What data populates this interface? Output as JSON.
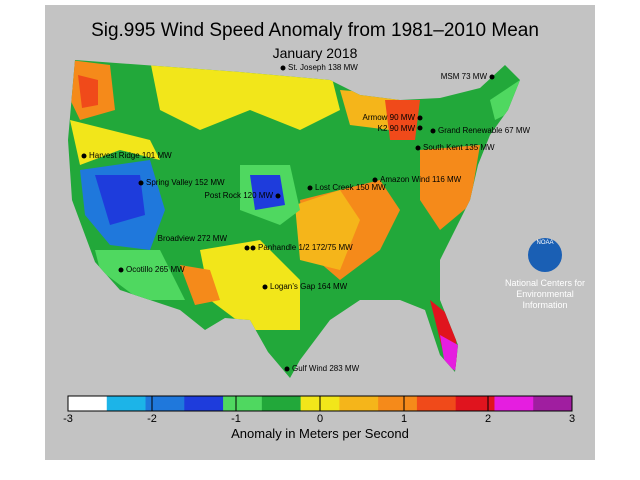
{
  "header": {
    "title": "Sig.995 Wind Speed Anomaly from 1981–2010 Mean",
    "subtitle": "January 2018"
  },
  "sites": [
    {
      "label": "St. Joseph 138 MW"
    },
    {
      "label": "MSM 73 MW"
    },
    {
      "label": "Armow 90 MW"
    },
    {
      "label": "K2 90 MW"
    },
    {
      "label": "Grand Renewable 67 MW"
    },
    {
      "label": "South Kent 135 MW"
    },
    {
      "label": "Harvest Ridge 101 MW"
    },
    {
      "label": "Spring Valley 152 MW"
    },
    {
      "label": "Amazon Wind 116 MW"
    },
    {
      "label": "Lost Creek 150 MW"
    },
    {
      "label": "Post Rock 120 MW"
    },
    {
      "label": "Broadview 272 MW"
    },
    {
      "label": "Panhandle 1/2 172/75 MW"
    },
    {
      "label": "Ocotillo 265 MW"
    },
    {
      "label": "Logan’s Gap 164 MW"
    },
    {
      "label": "Gulf Wind 283 MW"
    }
  ],
  "logo": {
    "mark": "NOAA",
    "lines": [
      "National Centers for",
      "Environmental",
      "Information"
    ]
  },
  "legend": {
    "ticks": [
      -3,
      -2,
      -1,
      0,
      1,
      2,
      3
    ],
    "colors": [
      "#ffffff",
      "#1cb4e8",
      "#1f78dc",
      "#1e3cdc",
      "#4fd860",
      "#22a83a",
      "#f2e61a",
      "#f5b51a",
      "#f58a1a",
      "#f04a1a",
      "#e0141e",
      "#e51ee0",
      "#a01ea0"
    ],
    "label": "Anomaly in Meters per Second"
  }
}
